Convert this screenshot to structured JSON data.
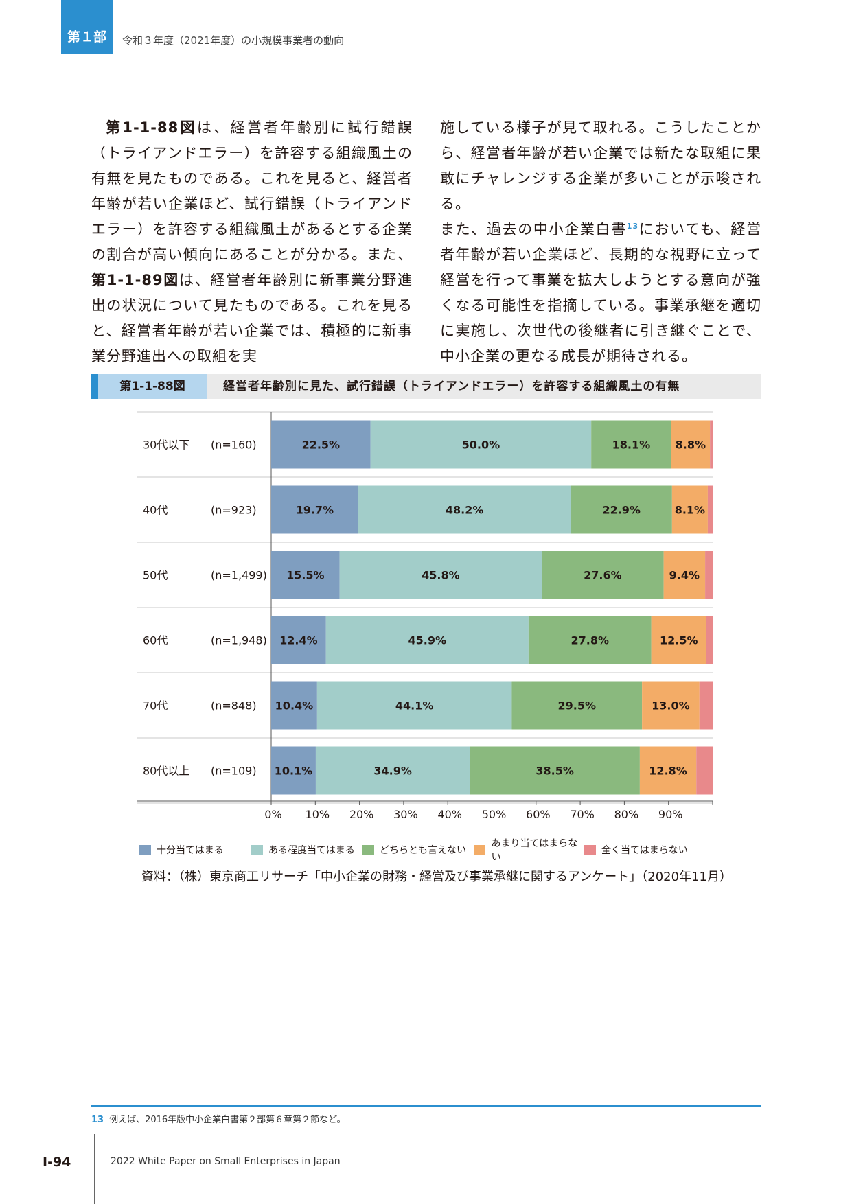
{
  "header": {
    "part": "第１部",
    "title": "令和３年度（2021年度）の小規模事業者の動向"
  },
  "body": {
    "left": [
      {
        "t": "第1-1-88図",
        "b": true
      },
      {
        "t": "は、経営者年齢別に試行錯誤（トライアンドエラー）を許容する組織風土の有無を見たものである。これを見ると、経営者年齢が若い企業ほど、試行錯誤（トライアンドエラー）を許容する組織風土があるとする企業の割合が高い傾向にあることが分かる。また、"
      },
      {
        "t": "第1-1-89図",
        "b": true
      },
      {
        "t": "は、経営者年齢別に新事業分野進出の状況について見たものである。これを見ると、経営者年齢が若い企業では、積極的に新事業分野進出への取組を実"
      }
    ],
    "right_1": "施している様子が見て取れる。こうしたことから、経営者年齢が若い企業では新たな取組に果敢にチャレンジする企業が多いことが示唆される。",
    "right_2a": "また、過去の中小企業白書",
    "right_sup": "13",
    "right_2b": "においても、経営者年齢が若い企業ほど、長期的な視野に立って経営を行って事業を拡大しようとする意向が強くなる可能性を指摘している。事業承継を適切に実施し、次世代の後継者に引き継ぐことで、中小企業の更なる成長が期待される。"
  },
  "figure": {
    "number": "第1-1-88図",
    "title": "経営者年齢別に見た、試行錯誤（トライアンドエラー）を許容する組織風土の有無"
  },
  "chart_data": {
    "type": "bar",
    "orientation": "horizontal",
    "stacked": true,
    "categories": [
      "30代以下",
      "40代",
      "50代",
      "60代",
      "70代",
      "80代以上"
    ],
    "n_labels": [
      "(n=160)",
      "(n=923)",
      "(n=1,499)",
      "(n=1,948)",
      "(n=848)",
      "(n=109)"
    ],
    "series": [
      {
        "name": "十分当てはまる",
        "values": [
          22.5,
          19.7,
          15.5,
          12.4,
          10.4,
          10.1
        ],
        "labels": [
          "22.5%",
          "19.7%",
          "15.5%",
          "12.4%",
          "10.4%",
          "10.1%"
        ],
        "color": "#7f9ec0"
      },
      {
        "name": "ある程度当てはまる",
        "values": [
          50.0,
          48.2,
          45.8,
          45.9,
          44.1,
          34.9
        ],
        "labels": [
          "50.0%",
          "48.2%",
          "45.8%",
          "45.9%",
          "44.1%",
          "34.9%"
        ],
        "color": "#a2cdc9"
      },
      {
        "name": "どちらとも言えない",
        "values": [
          18.1,
          22.9,
          27.6,
          27.8,
          29.5,
          38.5
        ],
        "labels": [
          "18.1%",
          "22.9%",
          "27.6%",
          "27.8%",
          "29.5%",
          "38.5%"
        ],
        "color": "#8ab97e"
      },
      {
        "name": "あまり当てはまらない",
        "values": [
          8.8,
          8.1,
          9.4,
          12.5,
          13.0,
          12.8
        ],
        "labels": [
          "8.8%",
          "8.1%",
          "9.4%",
          "12.5%",
          "13.0%",
          "12.8%"
        ],
        "color": "#f3ac67"
      },
      {
        "name": "全く当てはまらない",
        "values": [
          0.6,
          1.1,
          1.7,
          1.4,
          3.0,
          3.7
        ],
        "labels": [
          "",
          "",
          "",
          "",
          "",
          ""
        ],
        "color": "#e8898b"
      }
    ],
    "x_ticks": [
      "0%",
      "10%",
      "20%",
      "30%",
      "40%",
      "50%",
      "60%",
      "70%",
      "80%",
      "90%"
    ],
    "xlim": [
      0,
      100
    ],
    "legend": "bottom"
  },
  "source": "資料：（株）東京商工リサーチ「中小企業の財務・経営及び事業承継に関するアンケート」（2020年11月）",
  "footnote": {
    "num": "13",
    "text": "例えば、2016年版中小企業白書第２部第６章第２節など。"
  },
  "footer": {
    "page": "I-94",
    "publication": "2022 White Paper on Small Enterprises in Japan"
  }
}
